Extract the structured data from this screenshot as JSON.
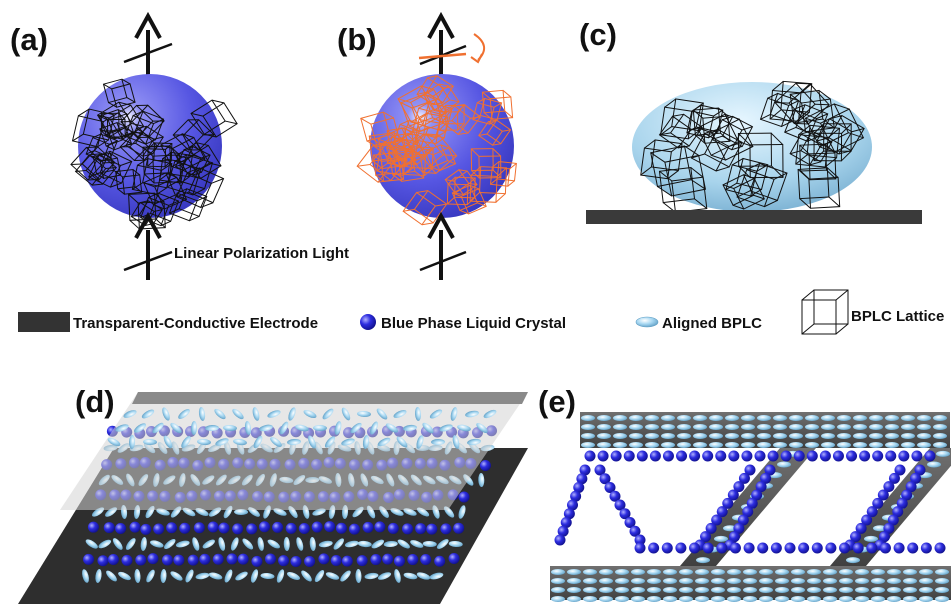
{
  "panels": {
    "a": "(a)",
    "b": "(b)",
    "c": "(c)",
    "d": "(d)",
    "e": "(e)"
  },
  "annotation": {
    "light": "Linear Polarization Light"
  },
  "legend": {
    "electrode": "Transparent-Conductive Electrode",
    "bplc": "Blue Phase Liquid Crystal",
    "aligned": "Aligned BPLC",
    "lattice": "BPLC Lattice"
  },
  "colors": {
    "sphere": "#5a5ae6",
    "lattice_a": "#111111",
    "lattice_b": "#f07030",
    "ellipsoid": "#a8d4ec",
    "electrode": "#333333",
    "lc_sphere": "#2a2ad8",
    "lc_ellipse": "#9fd0ee",
    "glass": "#c8c8c8"
  }
}
